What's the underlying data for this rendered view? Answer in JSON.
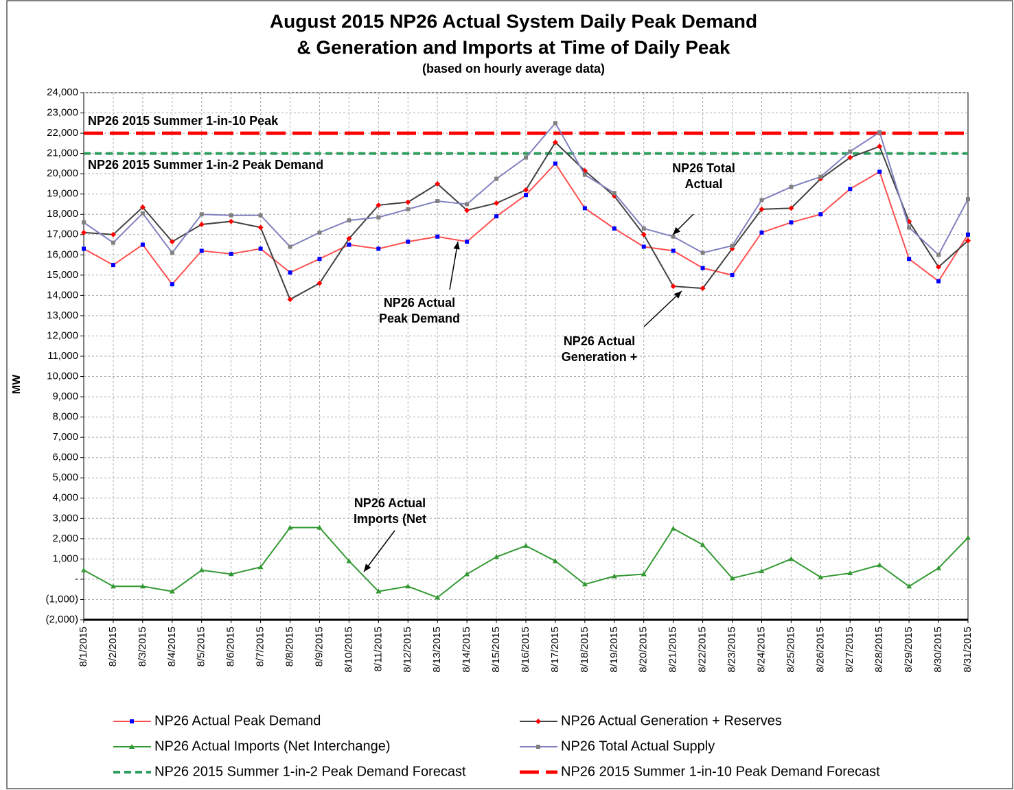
{
  "chart_data": {
    "type": "line",
    "title": "August 2015 NP26 Actual System Daily Peak Demand",
    "title_line2": "& Generation and Imports at Time of Daily Peak",
    "subtitle": "(based on hourly average data)",
    "y_label": "MW",
    "grid": true,
    "categories": [
      "8/1/2015",
      "8/2/2015",
      "8/3/2015",
      "8/4/2015",
      "8/5/2015",
      "8/6/2015",
      "8/7/2015",
      "8/8/2015",
      "8/9/2015",
      "8/10/2015",
      "8/11/2015",
      "8/12/2015",
      "8/13/2015",
      "8/14/2015",
      "8/15/2015",
      "8/16/2015",
      "8/17/2015",
      "8/18/2015",
      "8/19/2015",
      "8/20/2015",
      "8/21/2015",
      "8/22/2015",
      "8/23/2015",
      "8/24/2015",
      "8/25/2015",
      "8/26/2015",
      "8/27/2015",
      "8/28/2015",
      "8/29/2015",
      "8/30/2015",
      "8/31/2015"
    ],
    "ylim": [
      -2000,
      24000
    ],
    "yticks": [
      {
        "value": -2000,
        "label": "(2,000)"
      },
      {
        "value": -1000,
        "label": "(1,000)"
      },
      {
        "value": 0,
        "label": "-"
      },
      {
        "value": 1000,
        "label": "1,000"
      },
      {
        "value": 2000,
        "label": "2,000"
      },
      {
        "value": 3000,
        "label": "3,000"
      },
      {
        "value": 4000,
        "label": "4,000"
      },
      {
        "value": 5000,
        "label": "5,000"
      },
      {
        "value": 6000,
        "label": "6,000"
      },
      {
        "value": 7000,
        "label": "7,000"
      },
      {
        "value": 8000,
        "label": "8,000"
      },
      {
        "value": 9000,
        "label": "9,000"
      },
      {
        "value": 10000,
        "label": "10,000"
      },
      {
        "value": 11000,
        "label": "11,000"
      },
      {
        "value": 12000,
        "label": "12,000"
      },
      {
        "value": 13000,
        "label": "13,000"
      },
      {
        "value": 14000,
        "label": "14,000"
      },
      {
        "value": 15000,
        "label": "15,000"
      },
      {
        "value": 16000,
        "label": "16,000"
      },
      {
        "value": 17000,
        "label": "17,000"
      },
      {
        "value": 18000,
        "label": "18,000"
      },
      {
        "value": 19000,
        "label": "19,000"
      },
      {
        "value": 20000,
        "label": "20,000"
      },
      {
        "value": 21000,
        "label": "21,000"
      },
      {
        "value": 22000,
        "label": "22,000"
      },
      {
        "value": 23000,
        "label": "23,000"
      },
      {
        "value": 24000,
        "label": "24,000"
      }
    ],
    "series": [
      {
        "name": "NP26 Actual Peak Demand",
        "color": "#ff5050",
        "marker_color": "#0000ff",
        "marker": "square",
        "values": [
          16300,
          15500,
          16500,
          14550,
          16200,
          16050,
          16300,
          15130,
          15800,
          16500,
          16300,
          16650,
          16900,
          16650,
          17900,
          18950,
          20500,
          18300,
          17300,
          16400,
          16200,
          15350,
          15000,
          17100,
          17600,
          18000,
          19250,
          20100,
          15800,
          14700,
          17000
        ]
      },
      {
        "name": "NP26 Actual Generation + Reserves",
        "color": "#404040",
        "marker_color": "#ff0000",
        "marker": "diamond",
        "values": [
          17100,
          17000,
          18350,
          16650,
          17500,
          17650,
          17350,
          13800,
          14600,
          16800,
          18450,
          18600,
          19500,
          18200,
          18550,
          19200,
          21550,
          20150,
          18900,
          17000,
          14450,
          14350,
          16300,
          18250,
          18300,
          19750,
          20800,
          21350,
          17650,
          15400,
          16700
        ]
      },
      {
        "name": "NP26 Actual Imports (Net Interchange)",
        "color": "#339933",
        "marker_color": "#339933",
        "marker": "triangle",
        "values": [
          450,
          -350,
          -350,
          -600,
          450,
          250,
          600,
          2550,
          2550,
          900,
          -600,
          -350,
          -900,
          250,
          1100,
          1650,
          900,
          -250,
          150,
          250,
          2500,
          1700,
          50,
          400,
          1000,
          100,
          300,
          700,
          -350,
          550,
          2050
        ]
      },
      {
        "name": "NP26 Total Actual Supply",
        "color": "#8080c0",
        "marker_color": "#808080",
        "marker": "square",
        "values": [
          17600,
          16600,
          18050,
          16100,
          18000,
          17950,
          17950,
          16400,
          17100,
          17700,
          17850,
          18250,
          18650,
          18500,
          19750,
          20800,
          22500,
          19950,
          19050,
          17300,
          16900,
          16100,
          16450,
          18700,
          19350,
          19850,
          21100,
          22050,
          17350,
          16000,
          18750
        ]
      }
    ],
    "reference_lines": [
      {
        "name": "NP26 2015 Summer 1-in-2 Peak Demand Forecast",
        "color": "#2e9e5e",
        "value": 21000,
        "dash": "10,6",
        "width": 4
      },
      {
        "name": "NP26 2015 Summer 1-in-10 Peak Demand Forecast",
        "color": "#ff0000",
        "value": 22000,
        "dash": "28,10",
        "width": 5
      }
    ],
    "annotations": [
      [
        "NP26 2015 Summer 1-in-10 Peak"
      ],
      [
        "NP26 2015 Summer 1-in-2 Peak Demand"
      ],
      [
        "NP26 Total",
        "Actual"
      ],
      [
        "NP26 Actual",
        "Peak Demand"
      ],
      [
        "NP26 Actual",
        "Generation +"
      ],
      [
        "NP26 Actual",
        "Imports (Net"
      ]
    ]
  }
}
